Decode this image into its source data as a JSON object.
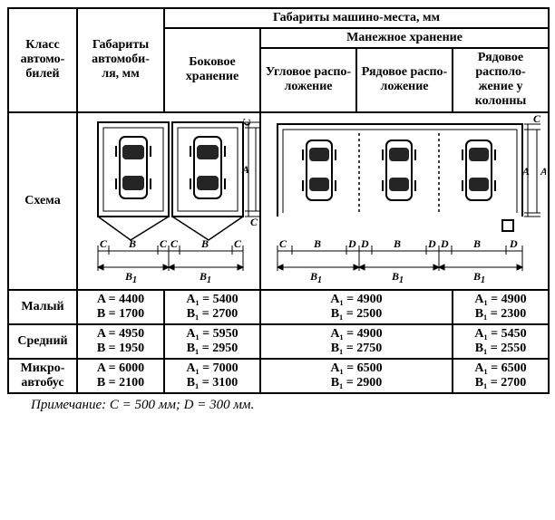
{
  "table": {
    "header": {
      "col_class": "Класс автомо-\nбилей",
      "col_dims": "Габариты автомоби-\nля, мм",
      "top": "Габариты машино-места, мм",
      "side": "Боковое хранение",
      "arena": "Манежное хранение",
      "corner": "Угловое распо-\nложение",
      "row": "Рядовое распо-\nложение",
      "row_col": "Рядовое располо-\nжение у колонны"
    },
    "scheme_label": "Схема",
    "rows": [
      {
        "name": "Малый",
        "dims": "A = 4400\nB = 1700",
        "side": "A₁ = 5400\nB₁ = 2700",
        "arena1": "A₁ = 4900\nB₁ = 2500",
        "arena2": "A₁ = 4900\nB₁ = 2300"
      },
      {
        "name": "Средний",
        "dims": "A = 4950\nB = 1950",
        "side": "A₁ = 5950\nB₁ = 2950",
        "arena1": "A₁ = 4900\nB₁ = 2750",
        "arena2": "A₁ = 5450\nB₁ = 2550"
      },
      {
        "name": "Микро-\nавтобус",
        "dims": "A = 6000\nB = 2100",
        "side": "A₁ = 7000\nB₁ = 3100",
        "arena1": "A₁ = 6500\nB₁ = 2900",
        "arena2": "A₁ = 6500\nB₁ = 2700"
      }
    ]
  },
  "note": "Примечание: C = 500 мм; D = 300 мм.",
  "diagram": {
    "stroke": "#000000",
    "bg": "#ffffff",
    "dim_font": 11,
    "label_font": 12,
    "car_w": 30,
    "car_h": 60
  }
}
